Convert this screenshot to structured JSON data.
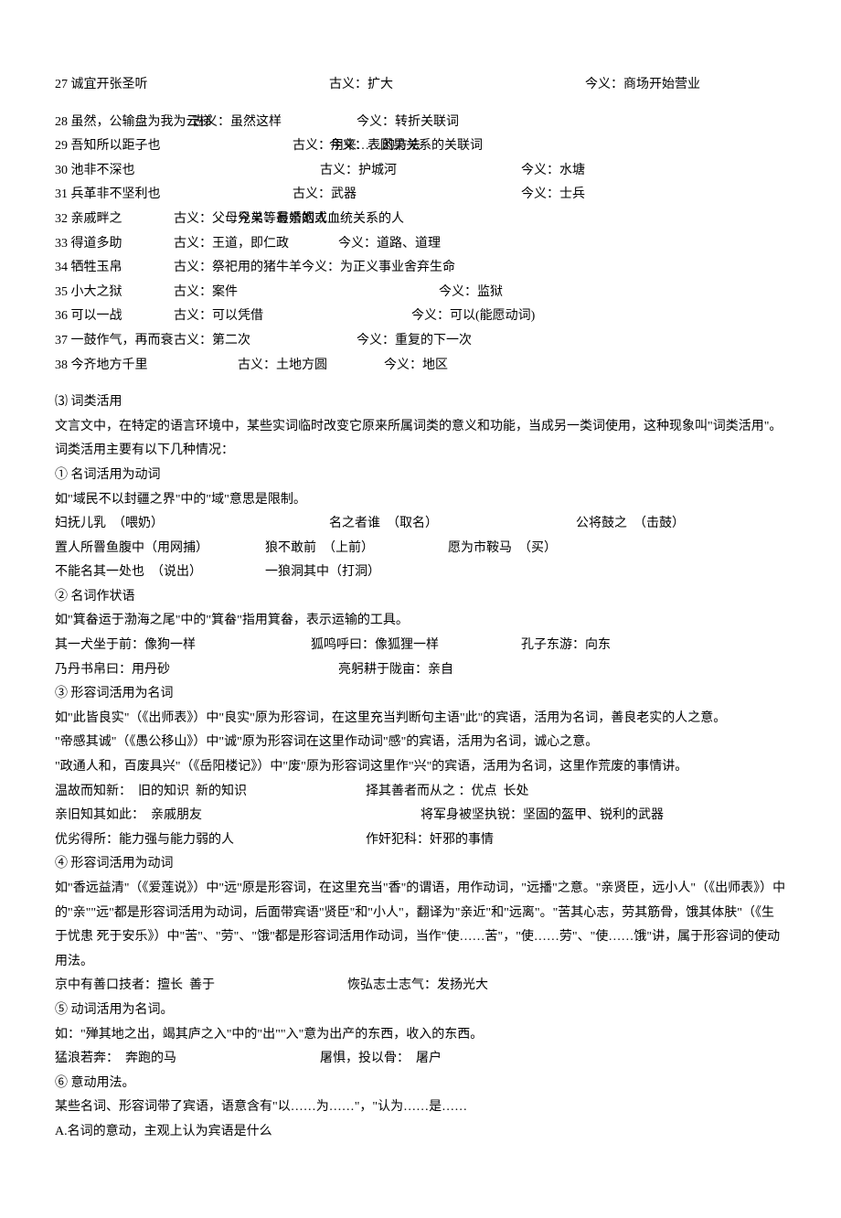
{
  "guyijin": [
    {
      "n": "27",
      "text": "诚宜开张圣听",
      "gu": "古义：扩大",
      "jin": "今义：商场开始营业",
      "w1": 300,
      "w2": 280
    },
    {
      "n": "28",
      "text": "虽然，公输盘为我为云梯",
      "gu": "古义：虽然这样",
      "jin": "今义：转折关联词",
      "w1": 150,
      "w2": 180
    },
    {
      "n": "29",
      "text": "吾知所以距子也",
      "gu": "古义：用来……的方法",
      "jin": "今义：表因果关系的关联词",
      "w1": 260,
      "w2": 40
    },
    {
      "n": "30",
      "text": "池非不深也",
      "gu": "古义：护城河",
      "jin": "今义：水塘",
      "w1": 290,
      "w2": 220
    },
    {
      "n": "31",
      "text": "兵革非不坚利也",
      "gu": "古义：武器",
      "jin": "今义：士兵",
      "w1": 260,
      "w2": 250
    },
    {
      "n": "32",
      "text": "亲戚畔之",
      "gu": "古义：父母兄弟等最亲的人",
      "jin": "今义：有婚姻或血统关系的人",
      "w1": 130,
      "w2": 70
    },
    {
      "n": "33",
      "text": "得道多助",
      "gu": "古义：王道，即仁政",
      "jin": "今义：道路、道理",
      "w1": 130,
      "w2": 180
    },
    {
      "n": "34",
      "text": "牺牲玉帛",
      "gu": "古义：祭祀用的猪牛羊",
      "jin": "今义：为正义事业舍弃生命",
      "w1": 130,
      "w2": 140
    },
    {
      "n": "35",
      "text": "小大之狱",
      "gu": "古义：案件",
      "jin": "今义：监狱",
      "w1": 130,
      "w2": 290
    },
    {
      "n": "36",
      "text": "可以一战",
      "gu": "古义：可以凭借",
      "jin": "今义：可以(能愿动词)",
      "w1": 130,
      "w2": 260
    },
    {
      "n": "37",
      "text": "一鼓作气，再而衰",
      "gu": "古义：第二次",
      "jin": "今义：重复的下一次",
      "w1": 130,
      "w2": 200
    },
    {
      "n": "38",
      "text": "今齐地方千里",
      "gu": "古义：土地方圆",
      "jin": "今义：地区",
      "w1": 200,
      "w2": 160
    }
  ],
  "section3_title": "⑶  词类活用",
  "section3_intro": "文言文中，在特定的语言环境中，某些实词临时改变它原来所属词类的意义和功能，当成另一类词使用，这种现象叫\"词类活用\"。词类活用主要有以下几种情况：",
  "s1": {
    "title": "①  名词活用为动词",
    "line1": "如\"域民不以封疆之界\"中的\"域\"意思是限制。",
    "row1": {
      "a": "妇抚儿乳  （喂奶）",
      "b": "名之者谁  （取名）",
      "c": "公将鼓之  （击鼓）",
      "w1": 300,
      "w2": 270
    },
    "row2": {
      "a": "置人所罾鱼腹中（用网捕）",
      "b": "狼不敢前  （上前）",
      "c": "愿为市鞍马  （买）",
      "w1": 230,
      "w2": 200
    },
    "row3": {
      "a": "不能名其一处也  （说出）",
      "b": "一狼洞其中（打洞）",
      "w1": 230
    }
  },
  "s2": {
    "title": "②  名词作状语",
    "line1": "如\"箕畚运于渤海之尾\"中的\"箕畚\"指用箕畚，表示运输的工具。",
    "row1": {
      "a": "其一犬坐于前：像狗一样",
      "b": "狐鸣呼曰：像狐狸一样",
      "c": "孔子东游：向东",
      "w1": 280,
      "w2": 230
    },
    "row2": {
      "a": "乃丹书帛曰：用丹砂",
      "b": "亮躬耕于陇亩：亲自",
      "w1": 310
    }
  },
  "s3": {
    "title": "③  形容词活用为名词",
    "p1": "如\"此皆良实\"（《出师表》）中\"良实\"原为形容词，在这里充当判断句主语\"此\"的宾语，活用为名词，善良老实的人之意。",
    "p2": "\"帝感其诚\"（《愚公移山》）中\"诚\"原为形容词在这里作动词\"感\"的宾语，活用为名词，诚心之意。",
    "p3": "\"政通人和，百废具兴\"（《岳阳楼记》）中\"废\"原为形容词这里作\"兴\"的宾语，活用为名词，这里作荒废的事情讲。",
    "row1": {
      "a": "温故而知新：  旧的知识  新的知识",
      "b": "择其善者而从之 ：优点  长处",
      "w1": 340
    },
    "row2": {
      "a": "亲旧知其如此：  亲戚朋友",
      "b": "将军身被坚执锐：坚固的盔甲、锐利的武器",
      "w1": 400
    },
    "row3": {
      "a": "优劣得所：能力强与能力弱的人",
      "b": "作奸犯科：奸邪的事情",
      "w1": 340
    }
  },
  "s4": {
    "title": "④  形容词活用为动词",
    "p1": "如\"香远益清\"（《爱莲说》）中\"远\"原是形容词，在这里充当\"香\"的谓语，用作动词，\"远播\"之意。\"亲贤臣，远小人\"（《出师表》）中的\"亲\"\"远\"都是形容词活用为动词，后面带宾语\"贤臣\"和\"小人\"，翻译为\"亲近\"和\"远离\"。\"苦其心志，劳其筋骨，饿其体肤\"（《生于忧患  死于安乐》）中\"苦\"、\"劳\"、\"饿\"都是形容词活用作动词，当作\"使……苦\"，\"使……劳\"、\"使……饿\"讲，属于形容词的使动用法。",
    "row1": {
      "a": "京中有善口技者：擅长  善于",
      "b": "恢弘志士志气：发扬光大",
      "w1": 320
    }
  },
  "s5": {
    "title": "⑤  动词活用为名词。",
    "line1": "如：\"殚其地之出，竭其庐之入\"中的\"出\"\"入\"意为出产的东西，收入的东西。",
    "row1": {
      "a": "猛浪若奔：  奔跑的马",
      "b": "屠惧，投以骨：  屠户",
      "w1": 290
    }
  },
  "s6": {
    "title": "⑥  意动用法。",
    "line1": "某些名词、形容词带了宾语，语意含有\"以……为……\"，\"认为……是……",
    "line2": "A.名词的意动，主观上认为宾语是什么"
  }
}
